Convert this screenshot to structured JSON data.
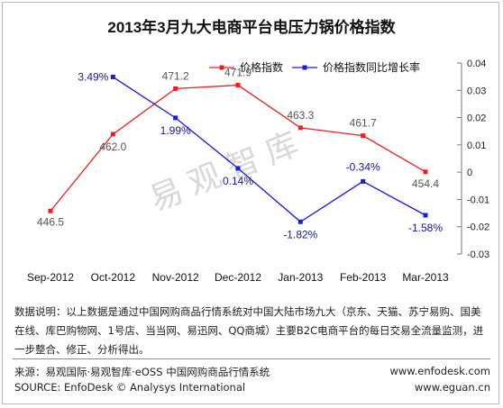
{
  "chart_data": {
    "type": "line",
    "title": "2013年3月九大电商平台电压力锅价格指数",
    "categories": [
      "Sep-2012",
      "Oct-2012",
      "Nov-2012",
      "Dec-2012",
      "Jan-2013",
      "Feb-2013",
      "Mar-2013"
    ],
    "series": [
      {
        "name": "价格指数",
        "axis": "left",
        "color": "#e8201f",
        "values": [
          446.5,
          462.0,
          471.2,
          471.9,
          463.3,
          461.7,
          454.4
        ],
        "labels": [
          "446.5",
          "462.0",
          "471.2",
          "471.9",
          "463.3",
          "461.7",
          "454.4"
        ]
      },
      {
        "name": "价格指数同比增长率",
        "axis": "right",
        "color": "#1c1cdc",
        "values": [
          null,
          0.0349,
          0.0199,
          0.0014,
          -0.0182,
          -0.0034,
          -0.0158
        ],
        "labels": [
          "",
          "3.49%",
          "1.99%",
          "0.14%",
          "-1.82%",
          "-0.34%",
          "-1.58%"
        ]
      }
    ],
    "y_left_range": [
      440,
      480
    ],
    "y_right_range": [
      -0.03,
      0.04
    ],
    "y_right_ticks": [
      "0.04",
      "0.03",
      "0.02",
      "0.01",
      "0",
      "-0.01",
      "-0.02",
      "-0.03"
    ],
    "legend_position": "top",
    "grid": false
  },
  "watermark": "易观智库",
  "note": "数据说明：以上数据是通过中国网购商品行情系统对中国大陆市场九大（京东、天猫、苏宁易购、国美在线、库巴购物网、1号店、当当网、易迅网、QQ商城）主要B2C电商平台的每日交易全流量监测，进一步整合、修正、分析得出。",
  "source_cn": "来源：易观国际·易观智库·eOSS 中国网购商品行情系统",
  "source_en": "SOURCE: EnfoDesk © Analysys International",
  "url1": "www.enfodesk.com",
  "url2": "www.eguan.cn"
}
